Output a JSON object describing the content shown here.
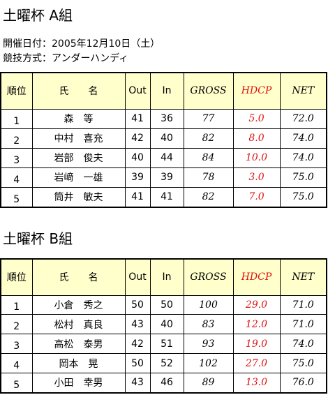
{
  "title_a": "土曜杯 A組",
  "info": [
    "開催日付：2005年12月10日（土）",
    "競技方式：アンダーハンディ"
  ],
  "table_a": {
    "header": [
      "順位",
      "氏　　名",
      "Out",
      "In",
      "GROSS",
      "HDCP",
      "NET"
    ],
    "rows": [
      [
        "1",
        "森　等",
        "41",
        "36",
        "77",
        "5.0",
        "72.0"
      ],
      [
        "2",
        "中村　喜充",
        "42",
        "40",
        "82",
        "8.0",
        "74.0"
      ],
      [
        "3",
        "岩部　俊夫",
        "40",
        "44",
        "84",
        "10.0",
        "74.0"
      ],
      [
        "4",
        "岩﨑　一雄",
        "39",
        "39",
        "78",
        "3.0",
        "75.0"
      ],
      [
        "5",
        "筒井　敏夫",
        "41",
        "41",
        "82",
        "7.0",
        "75.0"
      ]
    ]
  },
  "title_b": "土曜杯 B組",
  "table_b": {
    "header": [
      "順位",
      "氏　　名",
      "Out",
      "In",
      "GROSS",
      "HDCP",
      "NET"
    ],
    "rows": [
      [
        "1",
        "小倉　秀之",
        "50",
        "50",
        "100",
        "29.0",
        "71.0"
      ],
      [
        "2",
        "松村　真良",
        "43",
        "40",
        "83",
        "12.0",
        "71.0"
      ],
      [
        "3",
        "高松　泰男",
        "42",
        "51",
        "93",
        "19.0",
        "74.0"
      ],
      [
        "4",
        "岡本　晃",
        "50",
        "52",
        "102",
        "27.0",
        "75.0"
      ],
      [
        "5",
        "小田　幸男",
        "43",
        "46",
        "89",
        "13.0",
        "76.0"
      ]
    ]
  }
}
